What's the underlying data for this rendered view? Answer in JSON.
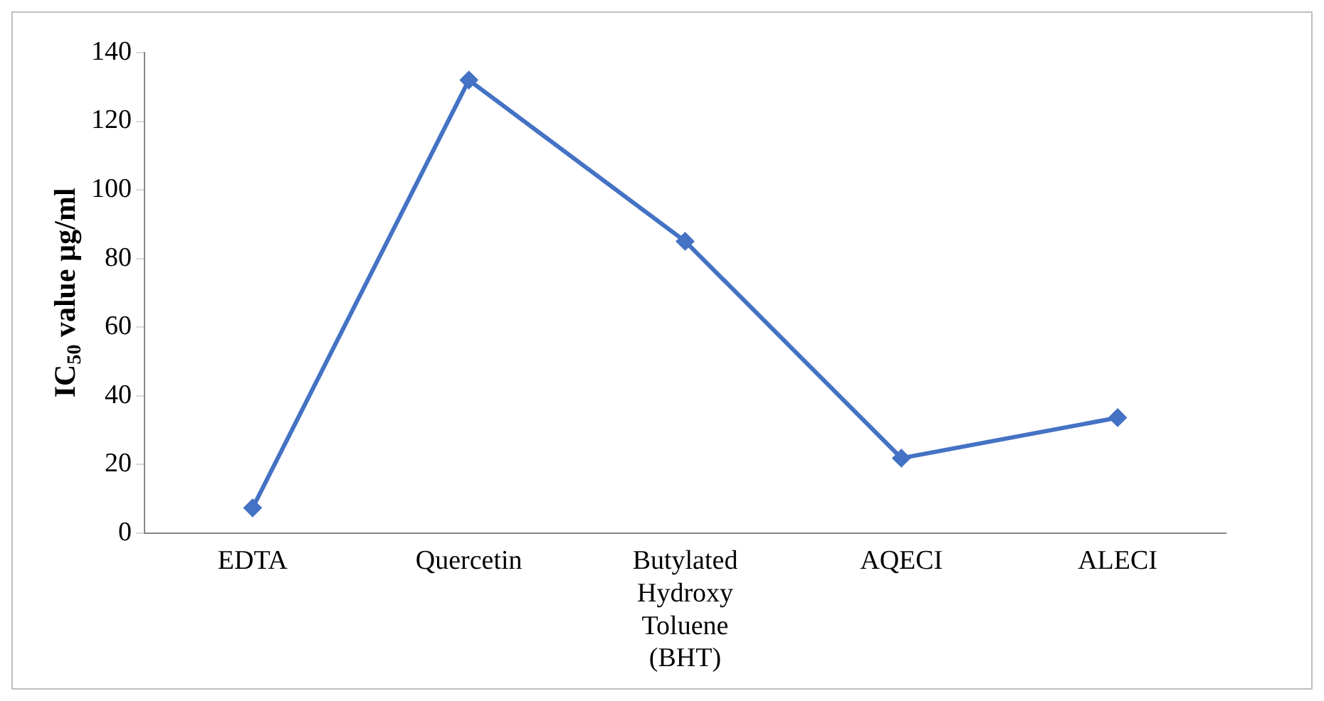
{
  "chart_data": {
    "type": "line",
    "ylabel": "IC$_{50}$ value µg/ml",
    "categories": [
      "EDTA",
      "Quercetin",
      "Butylated Hydroxy Toluene (BHT)",
      "AQECI",
      "ALECI"
    ],
    "series": [
      {
        "color": "#4472c4",
        "values": [
          7.3,
          132,
          85,
          21.8,
          33.6
        ]
      }
    ],
    "ylim": [
      0,
      140
    ],
    "yticks": [
      0,
      20,
      40,
      60,
      80,
      100,
      120,
      140
    ],
    "grid": false,
    "legend": false,
    "marker": "diamond",
    "line_style": "solid"
  }
}
